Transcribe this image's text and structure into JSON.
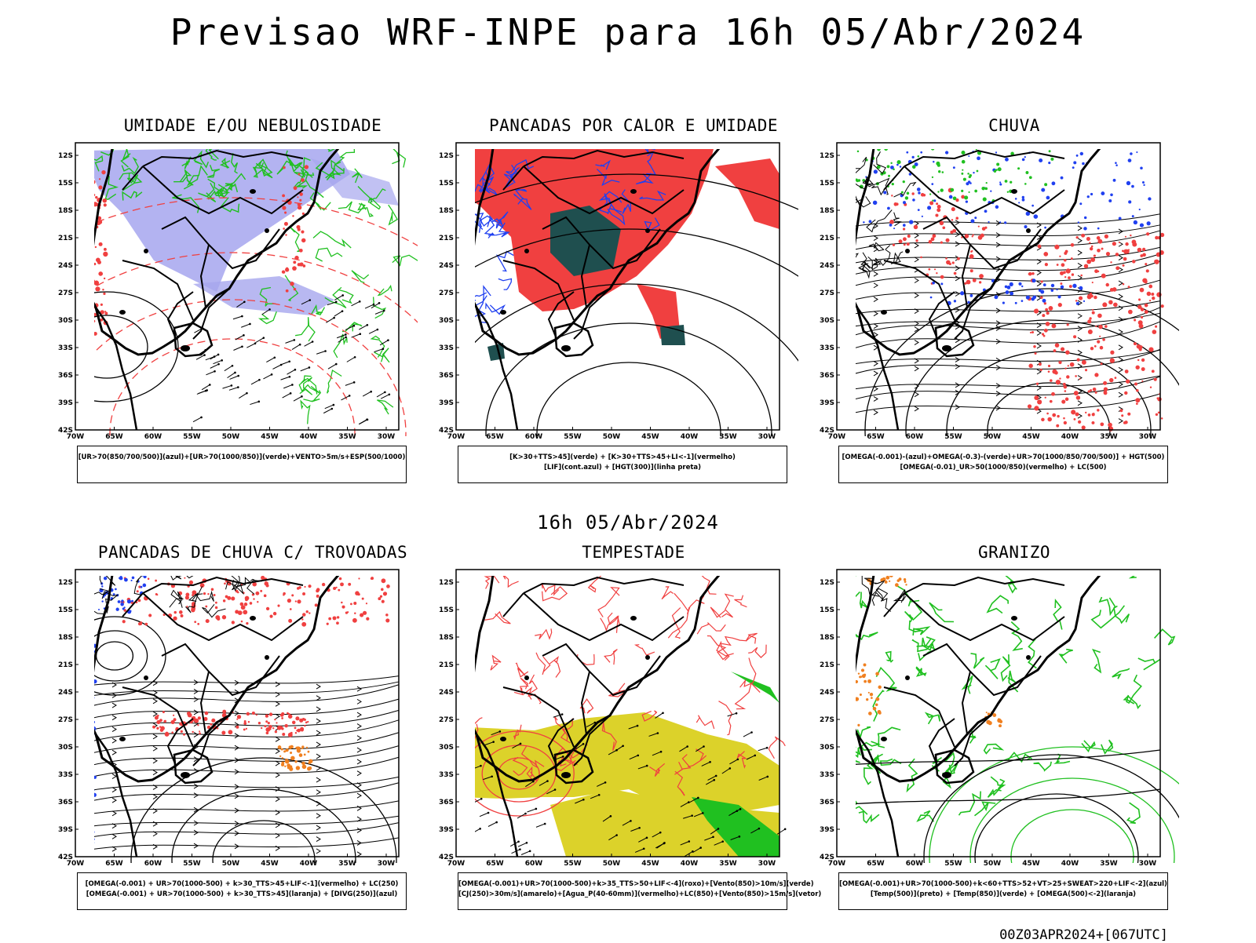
{
  "header": {
    "title": "Previsao WRF-INPE  para 16h 05/Abr/2024"
  },
  "subtitle": "16h 05/Abr/2024",
  "footer": "00Z03APR2024+[067UTC]",
  "axes": {
    "lat_labels": [
      "12S",
      "15S",
      "18S",
      "21S",
      "24S",
      "27S",
      "30S",
      "33S",
      "36S",
      "39S",
      "42S"
    ],
    "lon_labels": [
      "70W",
      "65W",
      "60W",
      "55W",
      "50W",
      "45W",
      "40W",
      "35W",
      "30W"
    ]
  },
  "colors": {
    "red": "#f04040",
    "green": "#20c020",
    "blue": "#2040f0",
    "lavender": "#a6a6ee",
    "yellow": "#dcd22a",
    "darkteal": "#1f4f4f",
    "orange": "#f08020"
  },
  "panels": [
    {
      "title": "UMIDADE E/OU NEBULOSIDADE",
      "legend": [
        "[UR>70(850/700/500)](azul)+[UR>70(1000/850)](verde)+VENTO>5m/s+ESP(500/1000)"
      ]
    },
    {
      "title": "PANCADAS POR CALOR E UMIDADE",
      "legend": [
        "[K>30+TTS>45](verde) + [K>30+TTS>45+LI<-1](vermelho)",
        "[LIF](cont.azul) + [HGT(300)](linha preta)"
      ]
    },
    {
      "title": "CHUVA",
      "legend": [
        "[OMEGA(-0.001)-(azul)+OMEGA(-0.3)-(verde)+UR>70(1000/850/700/500)] + HGT(500)",
        "[OMEGA(-0.01)_UR>50(1000/850)(vermelho) + LC(500)"
      ]
    },
    {
      "title": "PANCADAS DE CHUVA C/ TROVOADAS",
      "legend": [
        "[OMEGA(-0.001) + UR>70(1000-500) + k>30_TTS>45+LIF<-1](vermelho) + LC(250)",
        "[OMEGA(-0.001) + UR>70(1000-500) + k>30_TTS>45](laranja) + [DIVG(250)](azul)"
      ]
    },
    {
      "title": "TEMPESTADE",
      "legend": [
        "[OMEGA(-0.001)+UR>70(1000-500)+k>35_TTS>50+LIF<-4](roxo)+[Vento(850)>10m/s](verde)",
        "[CJ(250)>30m/s](amarelo)+[Agua_P(40-60mm)](vermelho)+LC(850)+[Vento(850)>15m/s](vetor)"
      ]
    },
    {
      "title": "GRANIZO",
      "legend": [
        "[OMEGA(-0.001)+UR>70(1000-500)+k<60+TTS>52+VT>25+SWEAT>220+LIF<-2](azul)",
        "[Temp(500)](preto) + [Temp(850)](verde) + [OMEGA(500)<-2](laranja)"
      ]
    }
  ]
}
